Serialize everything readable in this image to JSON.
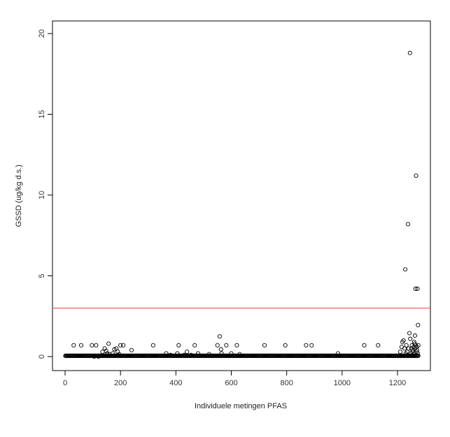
{
  "chart_data": {
    "type": "scatter",
    "title": "",
    "xlabel": "Individuele metingen PFAS",
    "ylabel": "GSSD (ug/kg d.s.)",
    "xlim": [
      0,
      1275
    ],
    "ylim": [
      0,
      20
    ],
    "x_ticks": [
      0,
      200,
      400,
      600,
      800,
      1000,
      1200
    ],
    "y_ticks": [
      0,
      5,
      10,
      15,
      20
    ],
    "grid": false,
    "marker": "open-circle",
    "point_color": "#000000",
    "reference_line": {
      "y": 3,
      "color": "#ff4d4d"
    },
    "baseline_value": 0.05,
    "baseline_x_range": [
      1,
      1275
    ],
    "points": [
      [
        31,
        0.7
      ],
      [
        58,
        0.7
      ],
      [
        97,
        0.7
      ],
      [
        112,
        0.7
      ],
      [
        105,
        0.0
      ],
      [
        120,
        0.0
      ],
      [
        135,
        0.3
      ],
      [
        143,
        0.5
      ],
      [
        148,
        0.35
      ],
      [
        152,
        0.2
      ],
      [
        157,
        0.8
      ],
      [
        160,
        0.15
      ],
      [
        172,
        0.2
      ],
      [
        178,
        0.45
      ],
      [
        185,
        0.5
      ],
      [
        190,
        0.3
      ],
      [
        195,
        0.15
      ],
      [
        200,
        0.7
      ],
      [
        210,
        0.7
      ],
      [
        240,
        0.4
      ],
      [
        318,
        0.7
      ],
      [
        365,
        0.2
      ],
      [
        380,
        0.1
      ],
      [
        405,
        0.2
      ],
      [
        410,
        0.7
      ],
      [
        430,
        0.1
      ],
      [
        440,
        0.3
      ],
      [
        455,
        0.1
      ],
      [
        468,
        0.7
      ],
      [
        480,
        0.2
      ],
      [
        520,
        0.15
      ],
      [
        550,
        0.7
      ],
      [
        558,
        1.25
      ],
      [
        563,
        0.45
      ],
      [
        565,
        0.2
      ],
      [
        582,
        0.7
      ],
      [
        600,
        0.2
      ],
      [
        620,
        0.7
      ],
      [
        630,
        0.15
      ],
      [
        720,
        0.7
      ],
      [
        795,
        0.7
      ],
      [
        870,
        0.7
      ],
      [
        890,
        0.7
      ],
      [
        985,
        0.2
      ],
      [
        1080,
        0.7
      ],
      [
        1130,
        0.7
      ],
      [
        1210,
        0.3
      ],
      [
        1215,
        0.6
      ],
      [
        1218,
        0.9
      ],
      [
        1222,
        1.0
      ],
      [
        1225,
        0.5
      ],
      [
        1228,
        5.4
      ],
      [
        1230,
        0.2
      ],
      [
        1232,
        0.7
      ],
      [
        1235,
        0.3
      ],
      [
        1238,
        8.2
      ],
      [
        1240,
        0.5
      ],
      [
        1243,
        1.45
      ],
      [
        1245,
        18.8
      ],
      [
        1246,
        1.1
      ],
      [
        1248,
        0.2
      ],
      [
        1250,
        0.5
      ],
      [
        1252,
        0.7
      ],
      [
        1254,
        0.3
      ],
      [
        1256,
        0.4
      ],
      [
        1258,
        0.6
      ],
      [
        1260,
        0.9
      ],
      [
        1261,
        0.2
      ],
      [
        1262,
        0.8
      ],
      [
        1263,
        1.3
      ],
      [
        1264,
        0.5
      ],
      [
        1265,
        4.2
      ],
      [
        1266,
        0.7
      ],
      [
        1267,
        11.2
      ],
      [
        1268,
        0.3
      ],
      [
        1270,
        0.6
      ],
      [
        1271,
        0.4
      ],
      [
        1272,
        4.2
      ],
      [
        1273,
        0.2
      ],
      [
        1274,
        1.95
      ],
      [
        1275,
        0.7
      ]
    ]
  }
}
